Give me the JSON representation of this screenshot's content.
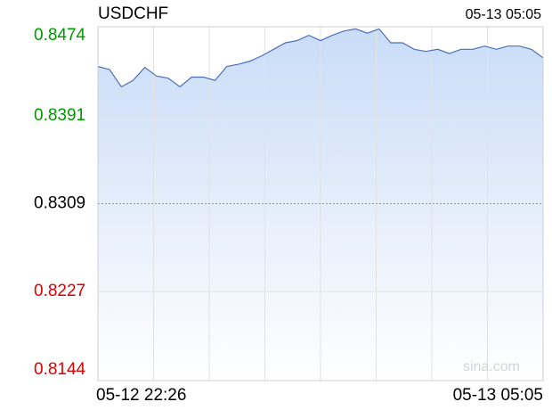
{
  "chart_data": {
    "type": "area",
    "title": "USDCHF",
    "timestamp": "05-13 05:05",
    "watermark": "sina.com",
    "values": [
      0.8437,
      0.8434,
      0.8418,
      0.8424,
      0.8436,
      0.8428,
      0.8426,
      0.8418,
      0.8427,
      0.8427,
      0.8424,
      0.8437,
      0.8439,
      0.8442,
      0.8447,
      0.8453,
      0.8459,
      0.8461,
      0.8466,
      0.8461,
      0.8466,
      0.847,
      0.8472,
      0.8468,
      0.8472,
      0.8459,
      0.8459,
      0.8453,
      0.8451,
      0.8453,
      0.8449,
      0.8453,
      0.8453,
      0.8456,
      0.8453,
      0.8456,
      0.8456,
      0.8453,
      0.8445
    ],
    "x_labels": [
      "05-12 22:26",
      "05-13 05:05"
    ],
    "color": "#4a6fb8",
    "fill_top": "#c9dcf7",
    "fill_bottom": "#ffffff",
    "ylim": [
      0.8144,
      0.8474
    ],
    "yticks": [
      0.8474,
      0.8391,
      0.8309,
      0.8227,
      0.8144
    ],
    "ytick_colors": [
      "#009900",
      "#009900",
      "#000000",
      "#dd0000",
      "#dd0000"
    ],
    "x_grid_divisions": 8,
    "grid": true
  }
}
